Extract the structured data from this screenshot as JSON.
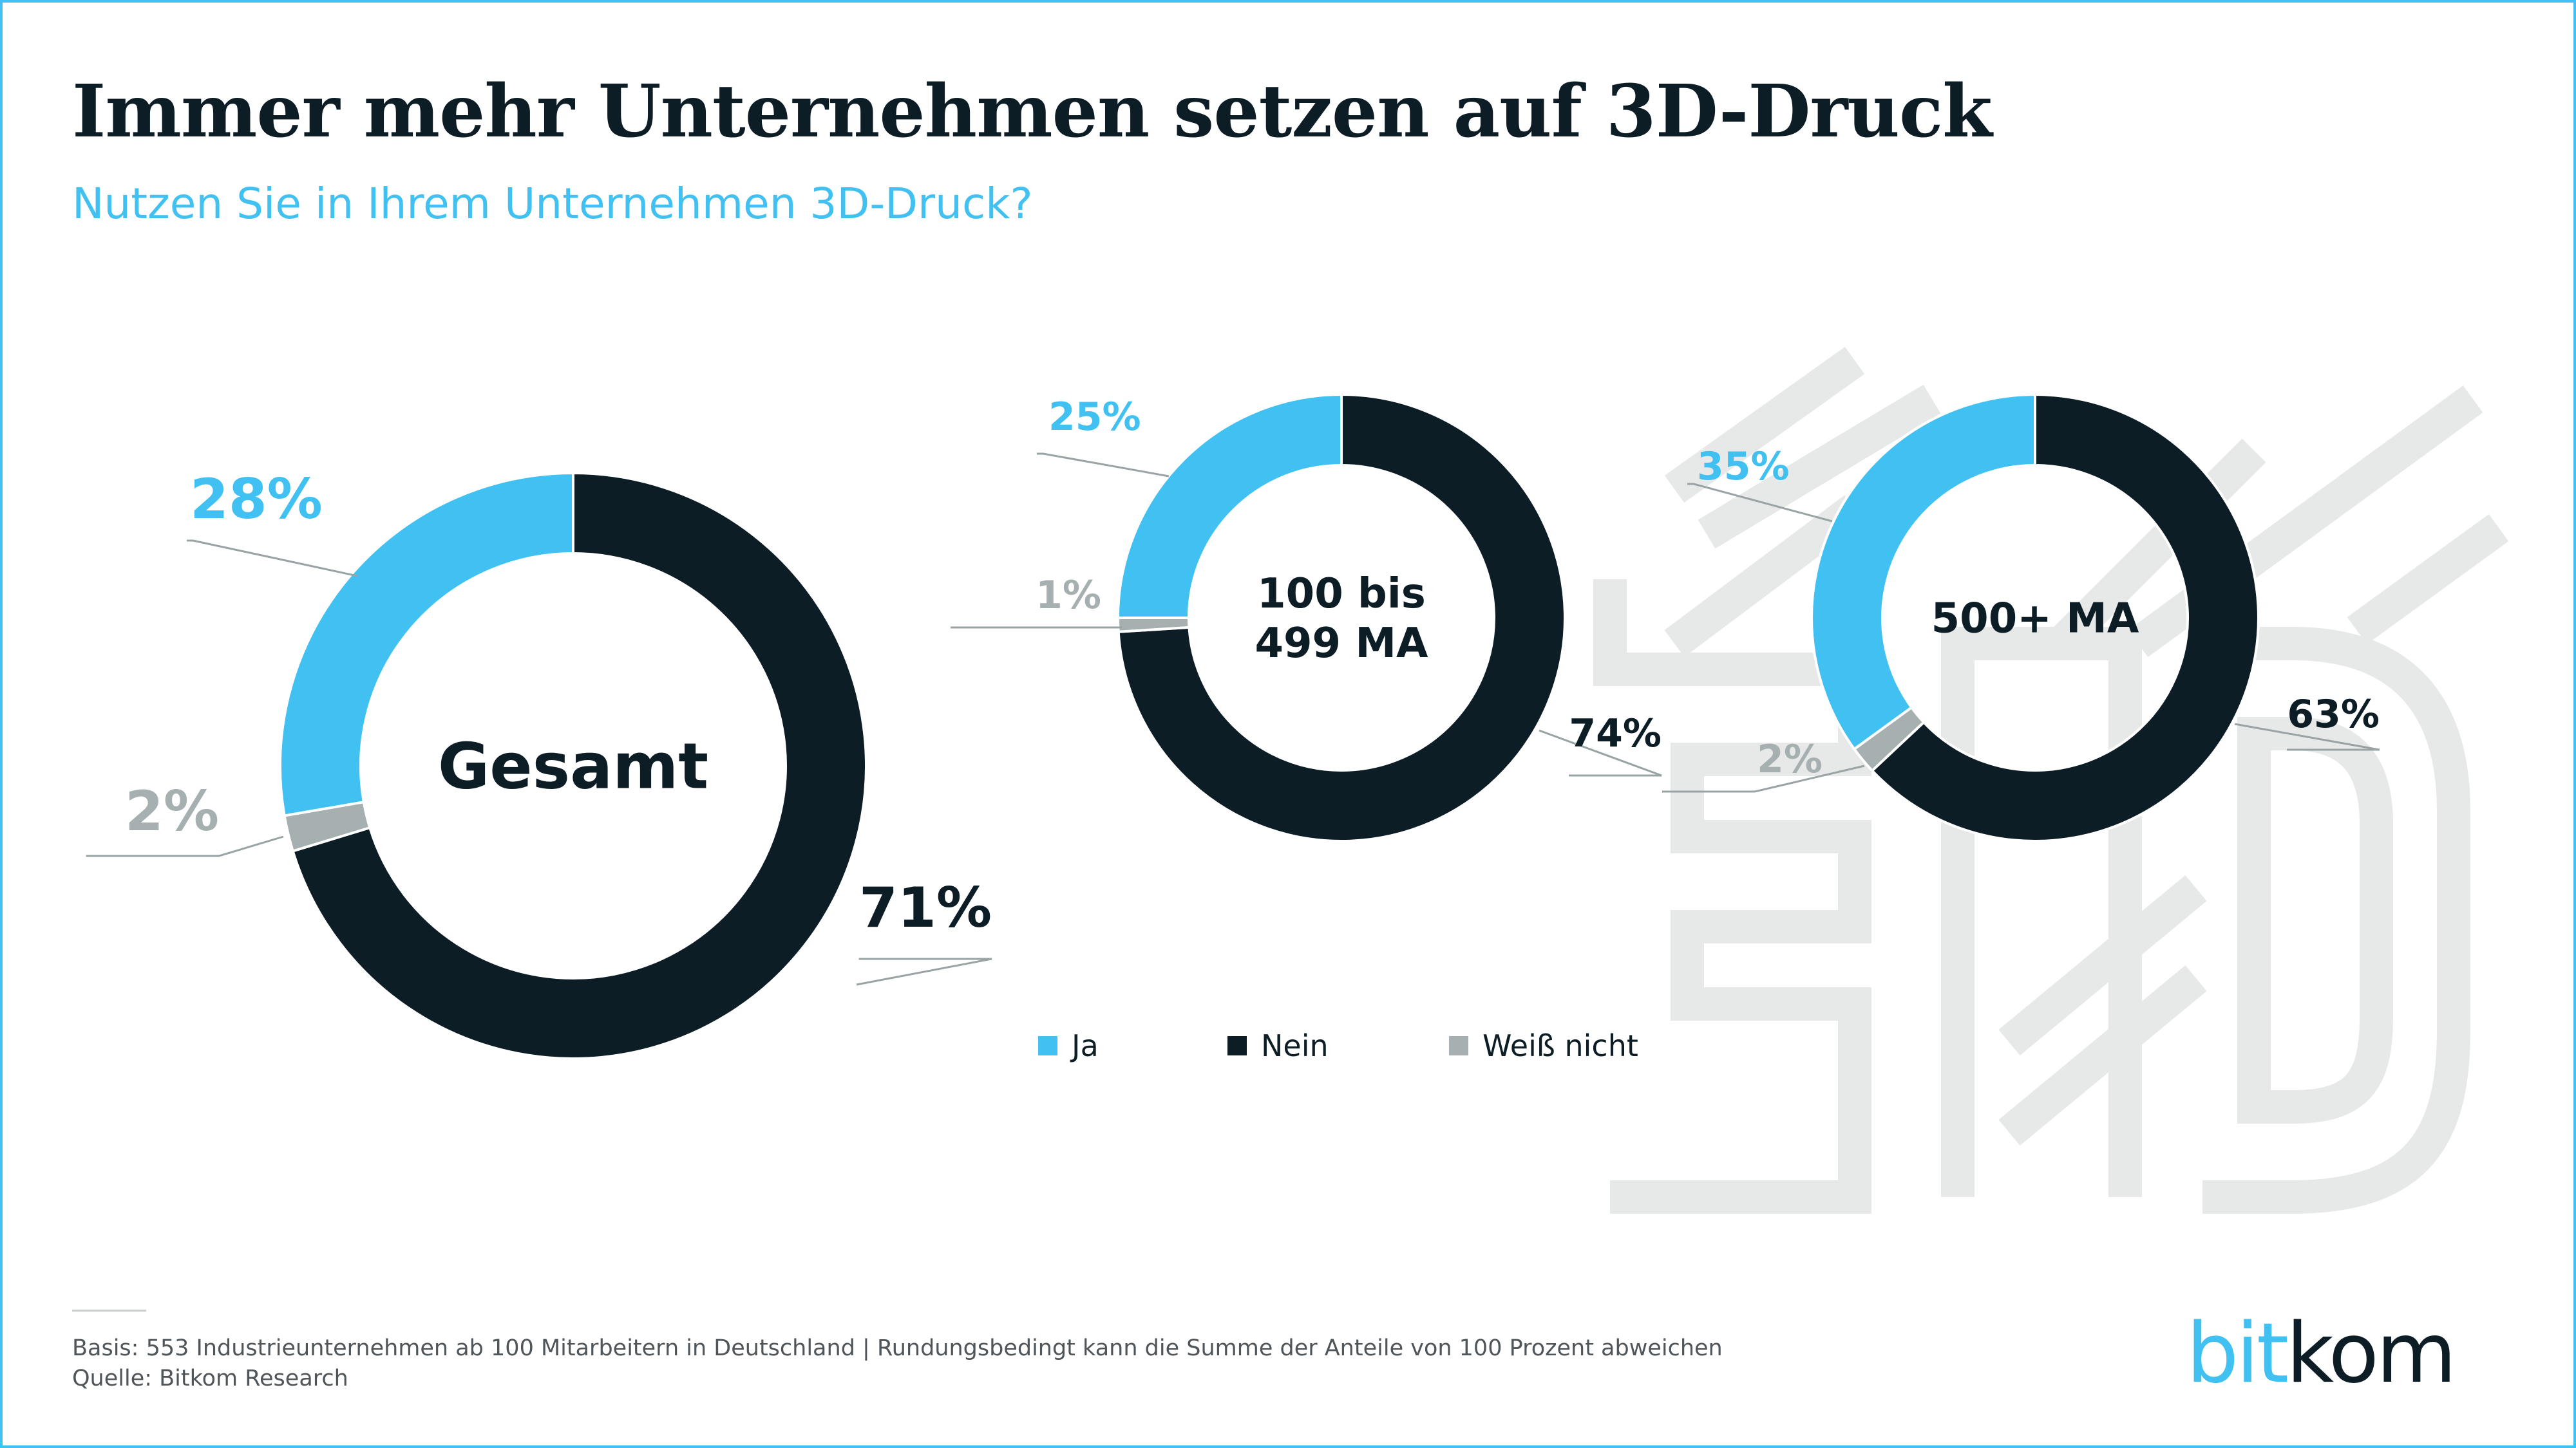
{
  "header": {
    "title": "Immer mehr Unternehmen setzen auf 3D-Druck",
    "subtitle": "Nutzen Sie in Ihrem Unternehmen 3D-Druck?"
  },
  "colors": {
    "ja": "#41c1f1",
    "nein": "#0c1d25",
    "weiss_nicht": "#a7b0b0",
    "accent": "#41c1f1",
    "watermark": "#e7e8e8"
  },
  "legend": [
    {
      "label": "Ja",
      "color": "#41c1f1"
    },
    {
      "label": "Nein",
      "color": "#0c1d25"
    },
    {
      "label": "Weiß nicht",
      "color": "#a7b0b0"
    }
  ],
  "chart_data": [
    {
      "type": "pie",
      "donut": true,
      "center_label": [
        "Gesamt"
      ],
      "categories": [
        "Ja",
        "Nein",
        "Weiß nicht"
      ],
      "values": [
        28,
        71,
        2
      ],
      "value_labels": [
        "28%",
        "71%",
        "2%"
      ]
    },
    {
      "type": "pie",
      "donut": true,
      "center_label": [
        "100 bis",
        "499 MA"
      ],
      "categories": [
        "Ja",
        "Nein",
        "Weiß nicht"
      ],
      "values": [
        25,
        74,
        1
      ],
      "value_labels": [
        "25%",
        "74%",
        "1%"
      ]
    },
    {
      "type": "pie",
      "donut": true,
      "center_label": [
        "500+ MA"
      ],
      "categories": [
        "Ja",
        "Nein",
        "Weiß nicht"
      ],
      "values": [
        35,
        63,
        2
      ],
      "value_labels": [
        "35%",
        "63%",
        "2%"
      ]
    }
  ],
  "footer": {
    "basis": "Basis: 553 Industrieunternehmen ab 100 Mitarbeitern in Deutschland | Rundungsbedingt kann die Summe der Anteile von 100 Prozent abweichen",
    "source": "Quelle: Bitkom Research"
  },
  "logo": {
    "part1": "bit",
    "part2": "kom"
  }
}
